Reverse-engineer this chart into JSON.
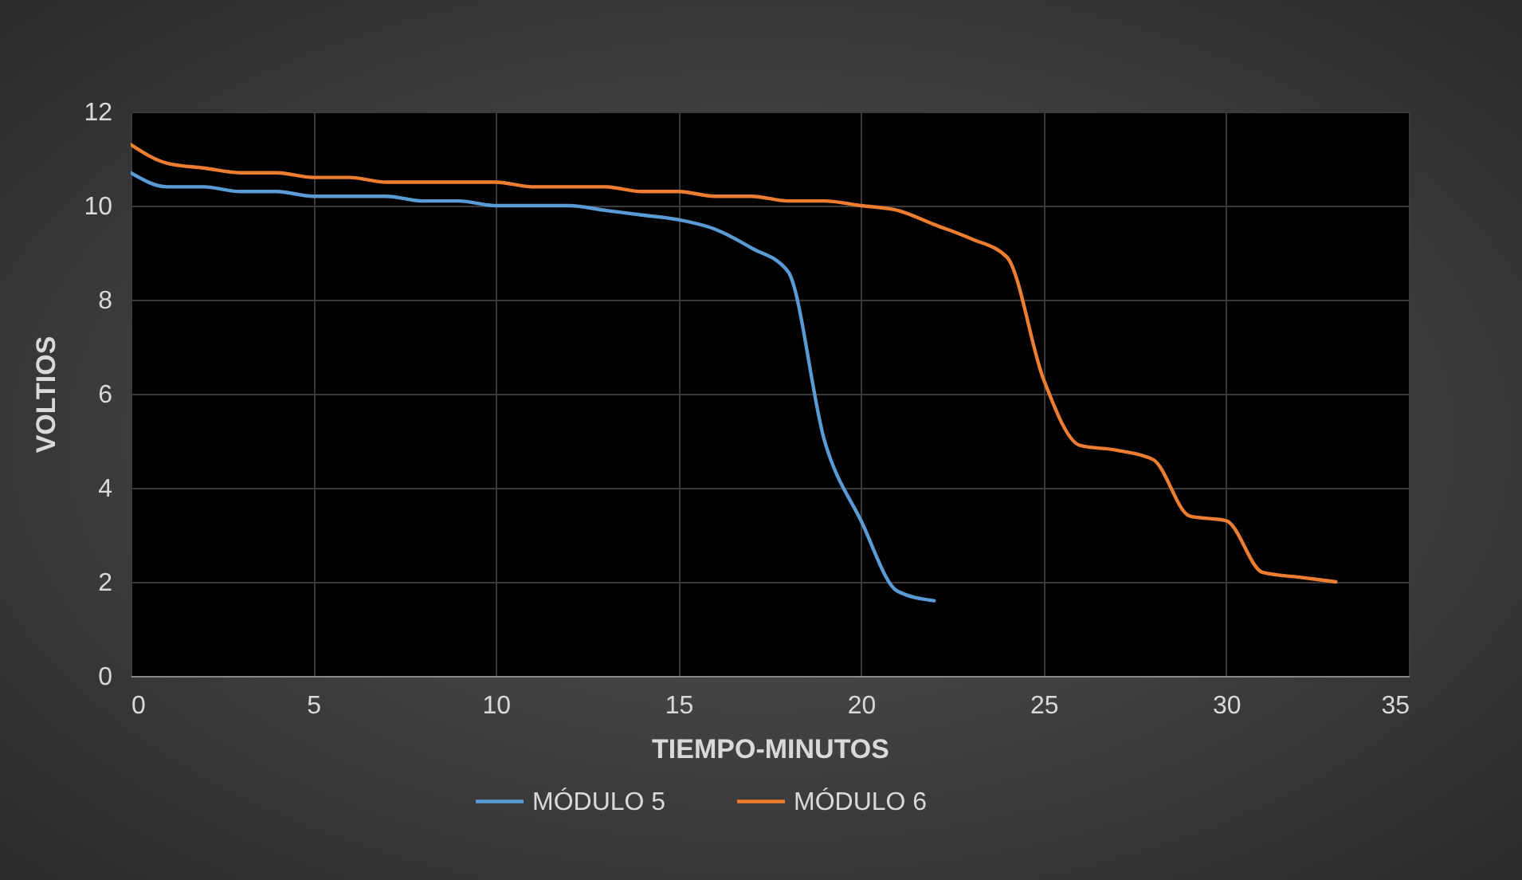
{
  "chart_data": {
    "type": "line",
    "xlabel": "TIEMPO-MINUTOS",
    "ylabel": "VOLTIOS",
    "xlim": [
      0,
      35
    ],
    "xticks": [
      0,
      5,
      10,
      15,
      20,
      25,
      30,
      35
    ],
    "ylim": [
      0,
      12
    ],
    "yticks": [
      0,
      2,
      4,
      6,
      8,
      10,
      12
    ],
    "grid": true,
    "legend": "bottom",
    "marker": "none",
    "line_style": "solid",
    "series": [
      {
        "name": "MÓDULO 5",
        "color": "#5b9bd5",
        "x": [
          0,
          1,
          2,
          3,
          4,
          5,
          6,
          7,
          8,
          9,
          10,
          11,
          12,
          13,
          14,
          15,
          16,
          17,
          18,
          19,
          20,
          21,
          22
        ],
        "values": [
          10.7,
          10.4,
          10.4,
          10.3,
          10.3,
          10.2,
          10.2,
          10.2,
          10.1,
          10.1,
          10.0,
          10.0,
          10.0,
          9.9,
          9.8,
          9.7,
          9.5,
          9.1,
          8.6,
          5.0,
          3.3,
          1.8,
          1.6
        ]
      },
      {
        "name": "MÓDULO 6",
        "color": "#ed7d31",
        "x": [
          0,
          1,
          2,
          3,
          4,
          5,
          6,
          7,
          8,
          9,
          10,
          11,
          12,
          13,
          14,
          15,
          16,
          17,
          18,
          19,
          20,
          21,
          22,
          23,
          24,
          25,
          26,
          27,
          28,
          29,
          30,
          31,
          32,
          33
        ],
        "values": [
          11.3,
          10.9,
          10.8,
          10.7,
          10.7,
          10.6,
          10.6,
          10.5,
          10.5,
          10.5,
          10.5,
          10.4,
          10.4,
          10.4,
          10.3,
          10.3,
          10.2,
          10.2,
          10.1,
          10.1,
          10.0,
          9.9,
          9.6,
          9.3,
          8.9,
          6.3,
          4.9,
          4.8,
          4.6,
          3.4,
          3.3,
          2.2,
          2.1,
          2.0
        ]
      }
    ]
  }
}
